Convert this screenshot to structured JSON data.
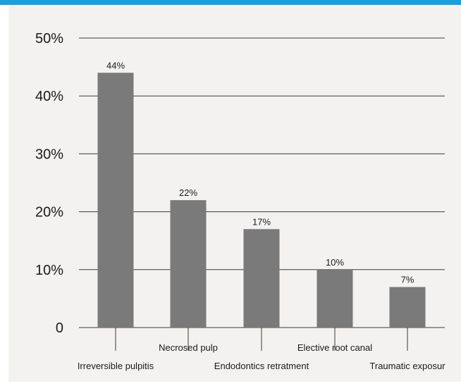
{
  "chart_data": {
    "type": "bar",
    "categories": [
      "Irreversible pulpitis",
      "Necrosed pulp",
      "Endodontics retratment",
      "Elective root canal",
      "Traumatic exposur"
    ],
    "values": [
      44,
      22,
      17,
      10,
      7
    ],
    "data_labels": [
      "44%",
      "22%",
      "17%",
      "10%",
      "7%"
    ],
    "y_ticks": [
      {
        "value": 0,
        "label": "0"
      },
      {
        "value": 10,
        "label": "10%"
      },
      {
        "value": 20,
        "label": "20%"
      },
      {
        "value": 30,
        "label": "30%"
      },
      {
        "value": 40,
        "label": "40%"
      },
      {
        "value": 50,
        "label": "50%"
      }
    ],
    "ylim": [
      0,
      50
    ],
    "title": "",
    "xlabel": "",
    "ylabel": "",
    "grid": true,
    "bar_color": "#7a7a7a",
    "accent_color": "#1aa0dc",
    "background_color": "#f3f2f1"
  }
}
